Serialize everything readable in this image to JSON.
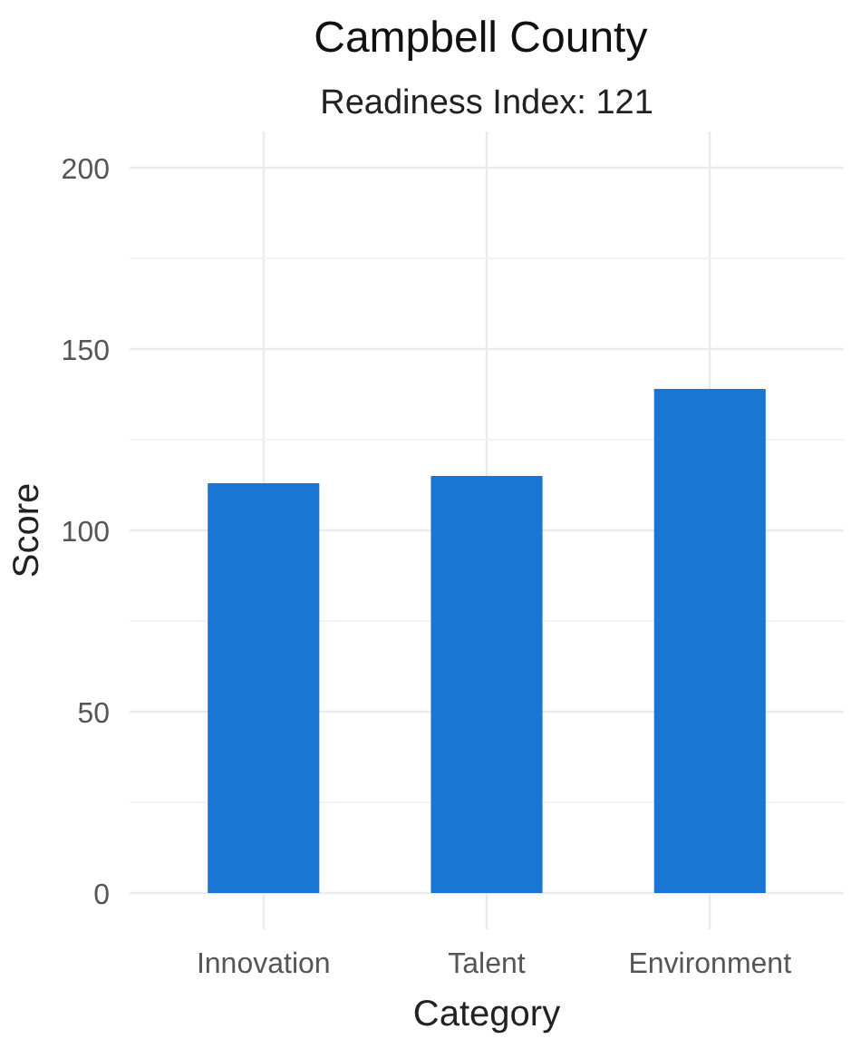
{
  "chart_data": {
    "type": "bar",
    "title": "Campbell  County",
    "subtitle": "Readiness Index: 121",
    "xlabel": "Category",
    "ylabel": "Score",
    "categories": [
      "Innovation",
      "Talent",
      "Environment"
    ],
    "values": [
      113,
      115,
      139
    ],
    "color": "#1976d2",
    "ylim": [
      -10,
      210
    ],
    "yticks": [
      0,
      50,
      100,
      150,
      200
    ],
    "grid": true
  }
}
